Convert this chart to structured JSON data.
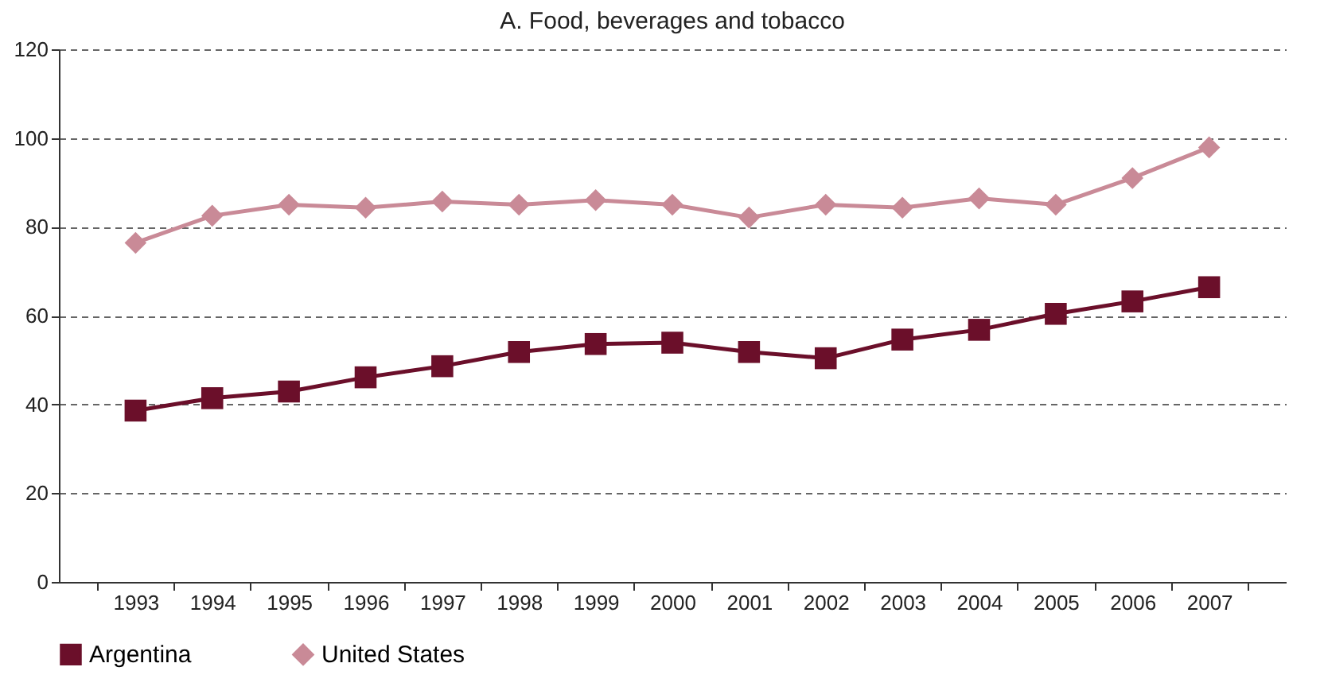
{
  "chart_data": {
    "type": "line",
    "title": "A. Food, beverages and tobacco",
    "categories": [
      "1993",
      "1994",
      "1995",
      "1996",
      "1997",
      "1998",
      "1999",
      "2000",
      "2001",
      "2002",
      "2003",
      "2004",
      "2005",
      "2006",
      "2007"
    ],
    "series": [
      {
        "name": "Argentina",
        "color": "#6b0f2a",
        "marker": "square",
        "values": [
          38.6,
          41.4,
          42.9,
          46.1,
          48.6,
          51.8,
          53.6,
          53.9,
          51.8,
          50.4,
          54.6,
          56.8,
          60.4,
          63.2,
          66.4
        ]
      },
      {
        "name": "United States",
        "color": "#c98a97",
        "marker": "diamond",
        "values": [
          76.4,
          82.5,
          85,
          84.3,
          85.7,
          85,
          86,
          85,
          82.1,
          85,
          84.3,
          86.4,
          85,
          91,
          97.9
        ]
      }
    ],
    "ylim": [
      0,
      120
    ],
    "yticks": [
      0,
      20,
      40,
      60,
      80,
      100,
      120
    ],
    "grid": "y",
    "legend": "bottom",
    "line_style": "solid"
  }
}
